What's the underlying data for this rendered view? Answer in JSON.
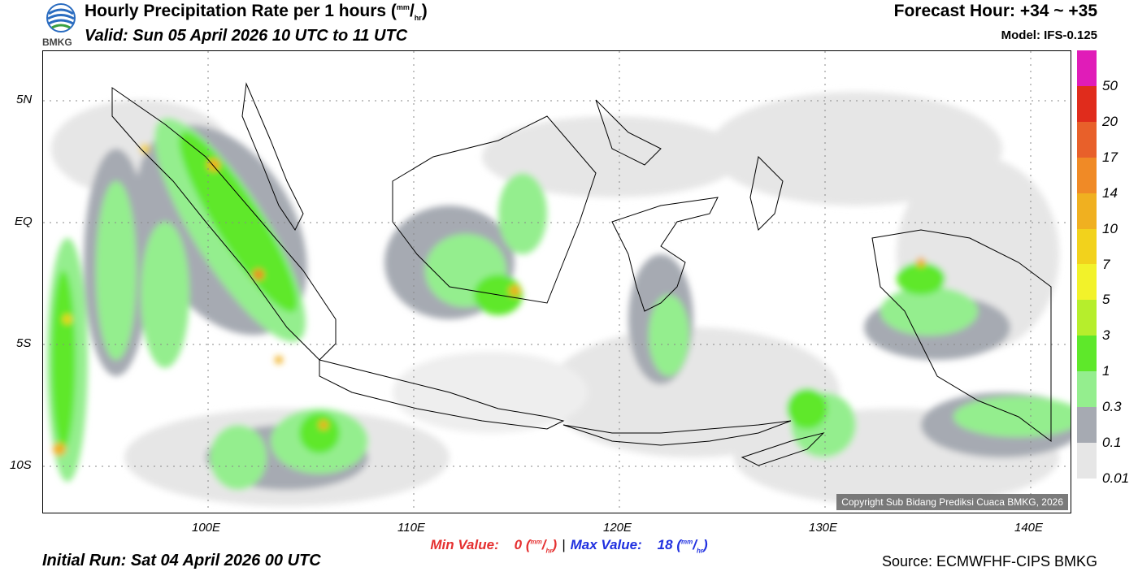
{
  "header": {
    "logo_text": "BMKG",
    "title": "Hourly Precipitation Rate per 1 hours",
    "unit_sup": "mm",
    "unit_sub": "hr",
    "valid": "Valid: Sun 05 April 2026 10 UTC to 11 UTC",
    "forecast_hour": "Forecast Hour: +34 ~ +35",
    "model": "Model: IFS-0.125"
  },
  "map": {
    "y_labels": [
      "5N",
      "EQ",
      "5S",
      "10S"
    ],
    "x_labels": [
      "100E",
      "110E",
      "120E",
      "130E",
      "140E"
    ],
    "copyright": "Copyright Sub Bidang Prediksi Cuaca BMKG, 2026"
  },
  "colorbar": {
    "labels": [
      "50",
      "20",
      "17",
      "14",
      "10",
      "7",
      "5",
      "3",
      "1",
      "0.3",
      "0.1",
      "0.01"
    ],
    "colors": [
      "#e01cb8",
      "#e02c1c",
      "#e8602a",
      "#f08a26",
      "#f0b020",
      "#f2d21c",
      "#f2f22a",
      "#b6ee2c",
      "#5ee82a",
      "#94ee8e",
      "#a6aab2",
      "#e6e6e6"
    ]
  },
  "footer": {
    "min_label": "Min Value:",
    "min_value": "0",
    "max_label": "Max Value:",
    "max_value": "18",
    "unit_sup": "mm",
    "unit_sub": "hr",
    "initial_run": "Initial Run: Sat 04 April 2026 00 UTC",
    "source": "Source: ECMWFHF-CIPS BMKG"
  }
}
